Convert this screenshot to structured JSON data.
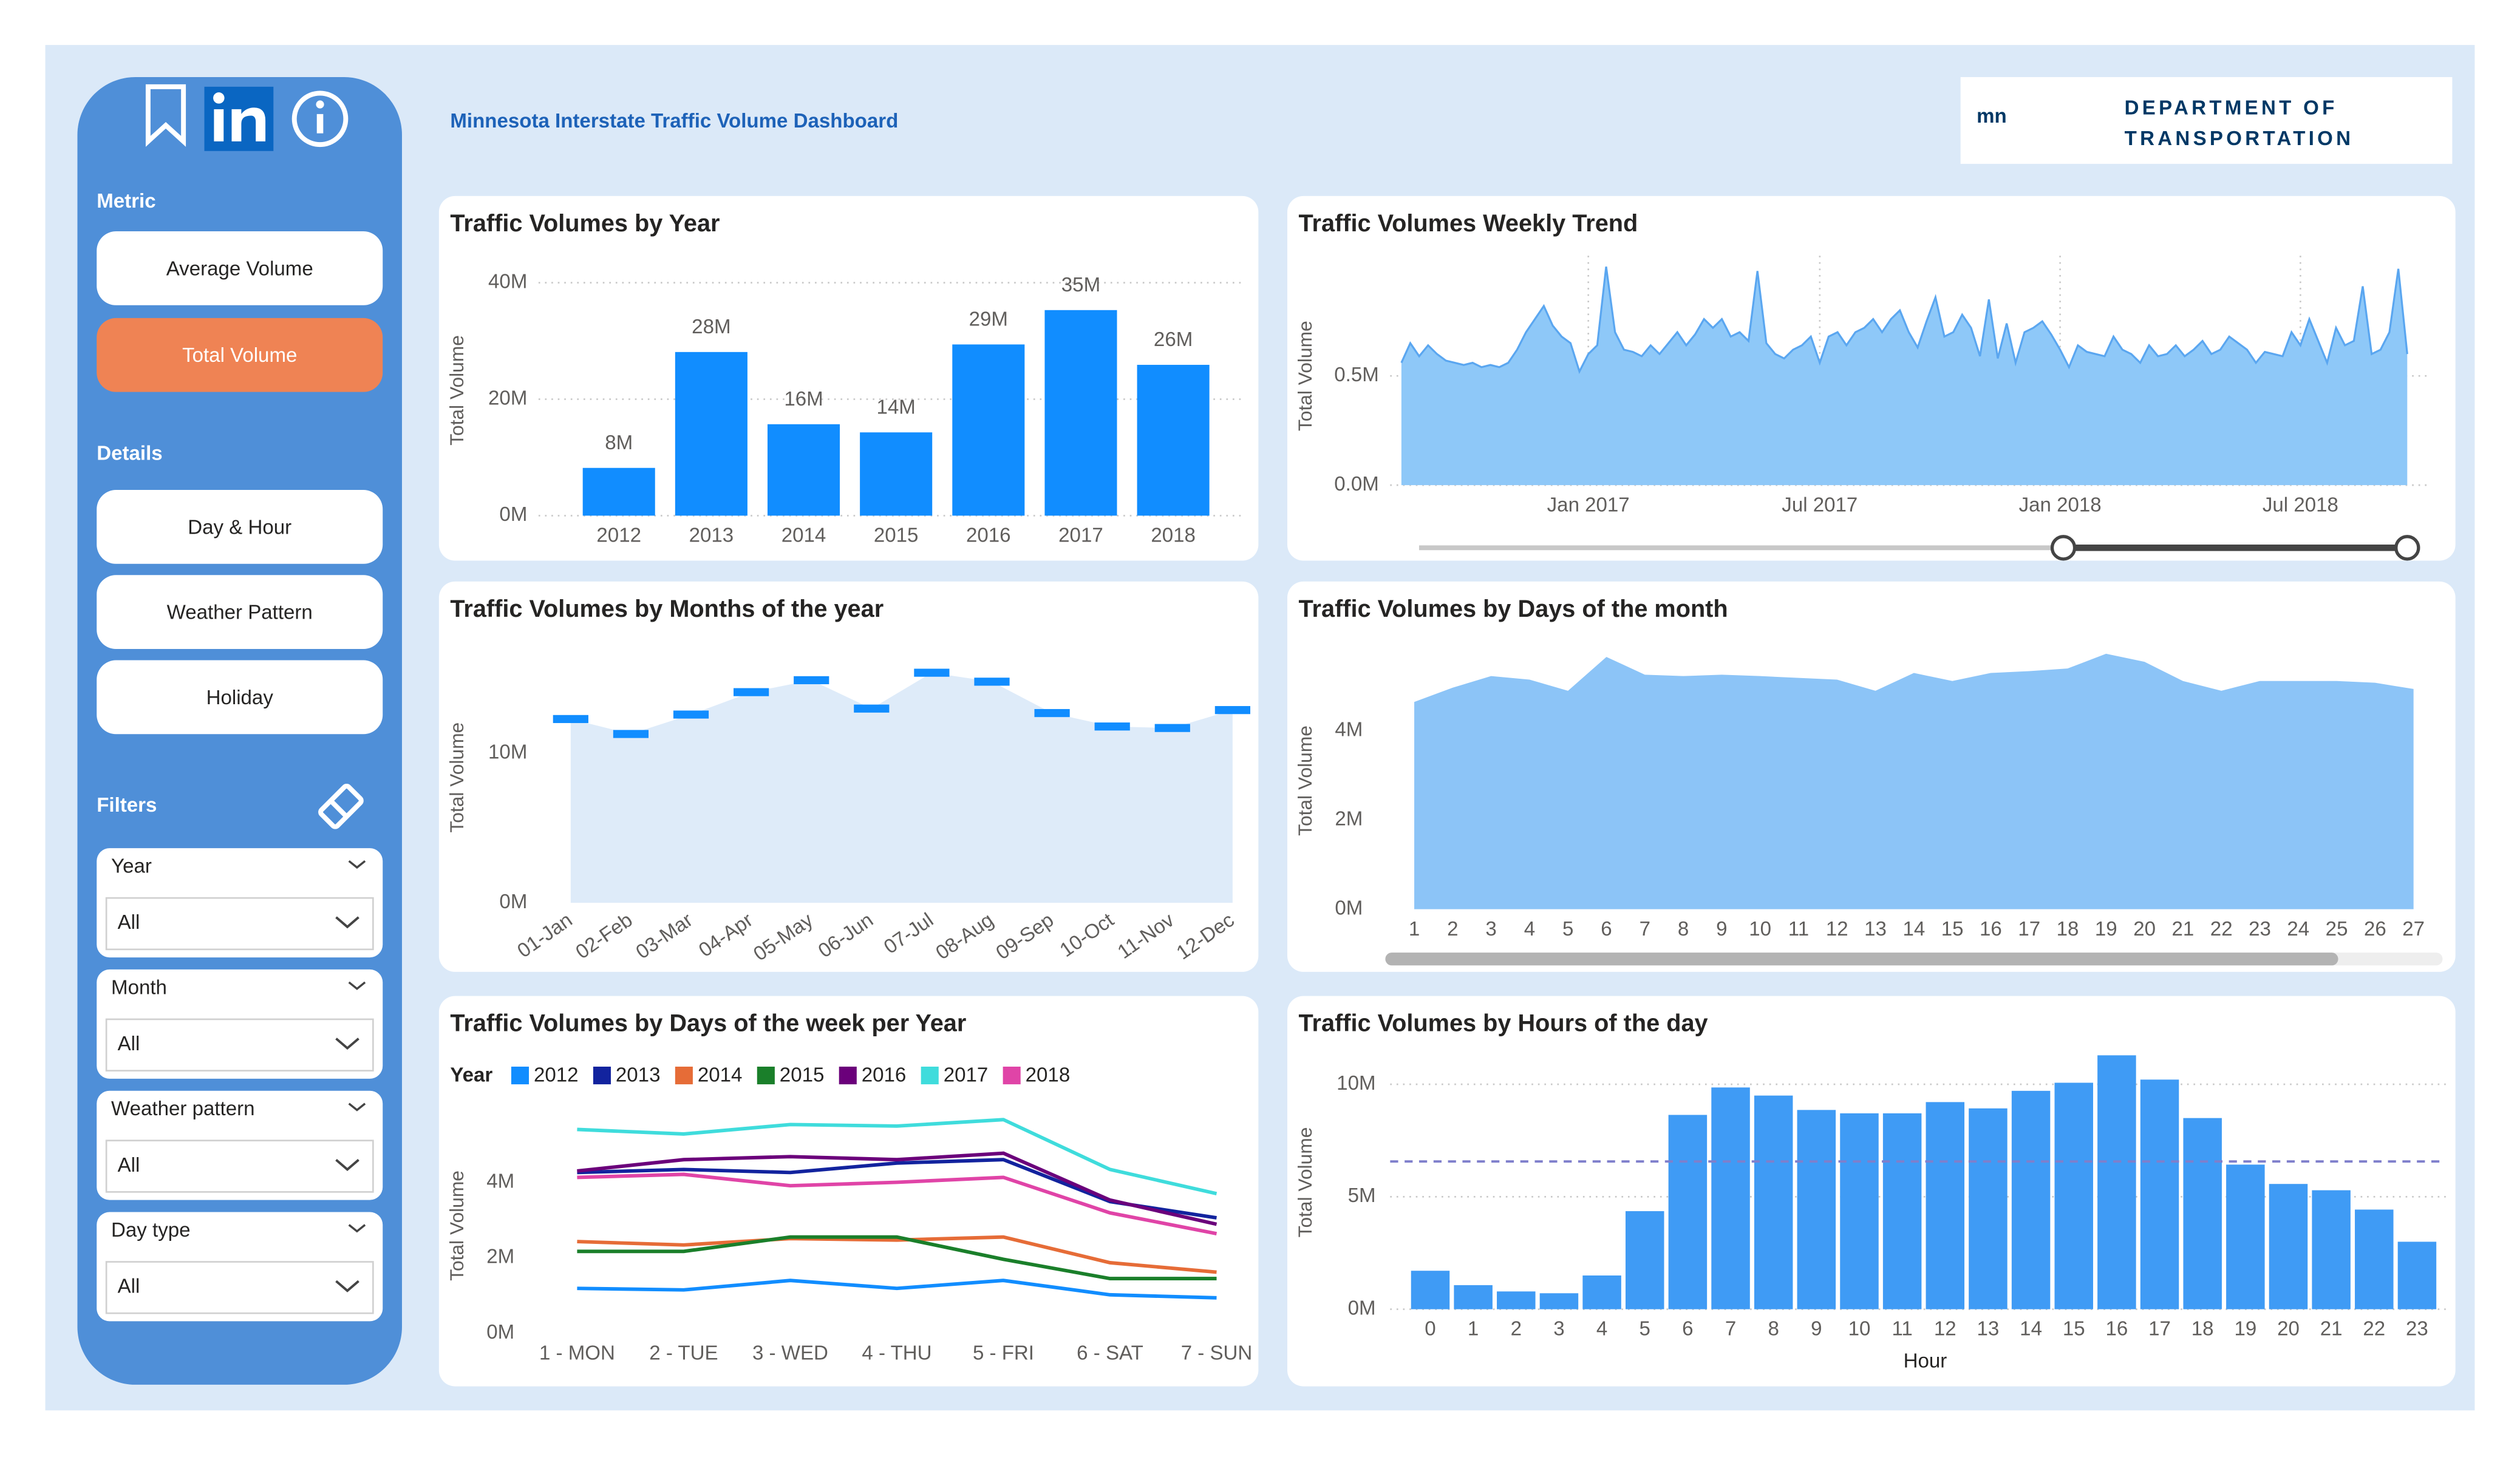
{
  "header": {
    "title": "Minnesota Interstate Traffic Volume Dashboard",
    "logo": {
      "mark": "mn",
      "line1": "DEPARTMENT OF",
      "line2": "TRANSPORTATION"
    }
  },
  "sidebar": {
    "metric": {
      "title": "Metric",
      "options": [
        "Average Volume",
        "Total Volume"
      ],
      "selected": 1
    },
    "details": {
      "title": "Details",
      "buttons": [
        "Day & Hour",
        "Weather Pattern",
        "Holiday"
      ]
    },
    "filters": {
      "title": "Filters",
      "items": [
        {
          "label": "Year",
          "value": "All"
        },
        {
          "label": "Month",
          "value": "All"
        },
        {
          "label": "Weather pattern",
          "value": "All"
        },
        {
          "label": "Day type",
          "value": "All"
        }
      ]
    }
  },
  "chart_data": [
    {
      "type": "bar",
      "title": "Traffic Volumes by Year",
      "y_label": "Total Volume",
      "categories": [
        "2012",
        "2013",
        "2014",
        "2015",
        "2016",
        "2017",
        "2018"
      ],
      "values": [
        8200000,
        28100000,
        15700000,
        14300000,
        29400000,
        35300000,
        25900000
      ],
      "value_labels": [
        "8M",
        "28M",
        "16M",
        "14M",
        "29M",
        "35M",
        "26M"
      ],
      "color": "#118dff",
      "ylim": [
        0,
        40000000
      ],
      "yticks": [
        {
          "value": 0,
          "label": "0M"
        },
        {
          "value": 20000000,
          "label": "20M"
        },
        {
          "value": 40000000,
          "label": "40M"
        }
      ],
      "grid": true
    },
    {
      "type": "area",
      "title": "Traffic Volumes Weekly Trend",
      "y_label": "Total Volume",
      "values": [
        560000,
        650000,
        590000,
        640000,
        600000,
        570000,
        560000,
        550000,
        560000,
        540000,
        550000,
        540000,
        560000,
        620000,
        700000,
        760000,
        820000,
        730000,
        680000,
        650000,
        520000,
        600000,
        640000,
        1000000,
        700000,
        620000,
        610000,
        590000,
        640000,
        600000,
        650000,
        700000,
        640000,
        690000,
        760000,
        720000,
        760000,
        680000,
        700000,
        660000,
        980000,
        650000,
        600000,
        580000,
        620000,
        640000,
        680000,
        560000,
        680000,
        700000,
        640000,
        700000,
        720000,
        760000,
        700000,
        760000,
        800000,
        700000,
        630000,
        750000,
        860000,
        680000,
        700000,
        780000,
        720000,
        590000,
        850000,
        580000,
        740000,
        560000,
        700000,
        720000,
        750000,
        690000,
        620000,
        540000,
        640000,
        610000,
        600000,
        590000,
        680000,
        620000,
        600000,
        560000,
        640000,
        590000,
        600000,
        640000,
        590000,
        620000,
        660000,
        600000,
        620000,
        680000,
        650000,
        620000,
        560000,
        610000,
        600000,
        590000,
        700000,
        640000,
        760000,
        660000,
        560000,
        720000,
        640000,
        660000,
        910000,
        600000,
        620000,
        700000,
        990000,
        600000
      ],
      "color": "#8ec8f8",
      "line_color": "#5aa6f0",
      "xlim": [
        0,
        113
      ],
      "xticks": [
        {
          "value": 21,
          "label": "Jan 2017"
        },
        {
          "value": 47,
          "label": "Jul 2017"
        },
        {
          "value": 74,
          "label": "Jan 2018"
        },
        {
          "value": 101,
          "label": "Jul 2018"
        }
      ],
      "ylim": [
        0,
        1050000
      ],
      "yticks": [
        {
          "value": 0,
          "label": "0.0M"
        },
        {
          "value": 500000,
          "label": "0.5M"
        }
      ],
      "grid": true
    },
    {
      "type": "area",
      "title": "Traffic Volumes by Months of the year",
      "y_label": "Total Volume",
      "categories": [
        "01-Jan",
        "02-Feb",
        "03-Mar",
        "04-Apr",
        "05-May",
        "06-Jun",
        "07-Jul",
        "08-Aug",
        "09-Sep",
        "10-Oct",
        "11-Nov",
        "12-Dec"
      ],
      "values": [
        12300000,
        11300000,
        12600000,
        14100000,
        14900000,
        13000000,
        15400000,
        14800000,
        12700000,
        11800000,
        11700000,
        12900000
      ],
      "color": "#deebf9",
      "marker": "dash",
      "marker_color": "#118dff",
      "ylim": [
        0,
        16000000
      ],
      "yticks": [
        {
          "value": 0,
          "label": "0M"
        },
        {
          "value": 10000000,
          "label": "10M"
        }
      ],
      "grid": false
    },
    {
      "type": "area",
      "title": "Traffic Volumes by Days of the month",
      "y_label": "Total Volume",
      "categories": [
        "1",
        "2",
        "3",
        "4",
        "5",
        "6",
        "7",
        "8",
        "9",
        "10",
        "11",
        "12",
        "13",
        "14",
        "15",
        "16",
        "17",
        "18",
        "19",
        "20",
        "21",
        "22",
        "23",
        "24",
        "25",
        "26",
        "27"
      ],
      "values": [
        4650000,
        4970000,
        5230000,
        5150000,
        4900000,
        5660000,
        5260000,
        5230000,
        5260000,
        5230000,
        5190000,
        5150000,
        4900000,
        5300000,
        5120000,
        5300000,
        5340000,
        5400000,
        5730000,
        5550000,
        5120000,
        4900000,
        5120000,
        5120000,
        5120000,
        5080000,
        4940000
      ],
      "color": "#8cc4f7",
      "ylim": [
        0,
        6000000
      ],
      "yticks": [
        {
          "value": 0,
          "label": "0M"
        },
        {
          "value": 2000000,
          "label": "2M"
        },
        {
          "value": 4000000,
          "label": "4M"
        }
      ],
      "grid": false
    },
    {
      "type": "line",
      "title": "Traffic Volumes by Days of the week per Year",
      "y_label": "Total Volume",
      "legend_title": "Year",
      "categories": [
        "1 - MON",
        "2 - TUE",
        "3 - WED",
        "4 - THU",
        "5 - FRI",
        "6 - SAT",
        "7 - SUN"
      ],
      "series": [
        {
          "name": "2012",
          "color": "#118dff",
          "values": [
            1190000,
            1150000,
            1400000,
            1190000,
            1400000,
            1020000,
            940000
          ]
        },
        {
          "name": "2013",
          "color": "#12239e",
          "values": [
            4260000,
            4340000,
            4260000,
            4510000,
            4600000,
            3490000,
            3060000
          ]
        },
        {
          "name": "2014",
          "color": "#e66c37",
          "values": [
            2430000,
            2340000,
            2510000,
            2470000,
            2550000,
            1870000,
            1620000
          ]
        },
        {
          "name": "2015",
          "color": "#1a7f2a",
          "values": [
            2170000,
            2170000,
            2550000,
            2550000,
            1960000,
            1450000,
            1450000
          ]
        },
        {
          "name": "2016",
          "color": "#6b007b",
          "values": [
            4300000,
            4600000,
            4680000,
            4600000,
            4770000,
            3530000,
            2890000
          ]
        },
        {
          "name": "2017",
          "color": "#3fdcdc",
          "values": [
            5400000,
            5280000,
            5530000,
            5490000,
            5660000,
            4340000,
            3700000
          ]
        },
        {
          "name": "2018",
          "color": "#e044a7",
          "values": [
            4130000,
            4210000,
            3910000,
            4000000,
            4130000,
            3190000,
            2640000
          ]
        }
      ],
      "ylim": [
        0,
        6000000
      ],
      "yticks": [
        {
          "value": 0,
          "label": "0M"
        },
        {
          "value": 2000000,
          "label": "2M"
        },
        {
          "value": 4000000,
          "label": "4M"
        }
      ],
      "grid": false
    },
    {
      "type": "bar",
      "title": "Traffic Volumes by Hours of the day",
      "y_label": "Total Volume",
      "x_label": "Hour",
      "categories": [
        "0",
        "1",
        "2",
        "3",
        "4",
        "5",
        "6",
        "7",
        "8",
        "9",
        "10",
        "11",
        "12",
        "13",
        "14",
        "15",
        "16",
        "17",
        "18",
        "19",
        "20",
        "21",
        "22",
        "23"
      ],
      "values": [
        1710000,
        1070000,
        790000,
        710000,
        1500000,
        4360000,
        8640000,
        9860000,
        9500000,
        8860000,
        8710000,
        8710000,
        9210000,
        8930000,
        9710000,
        10070000,
        11290000,
        10210000,
        8500000,
        6430000,
        5570000,
        5290000,
        4430000,
        3000000
      ],
      "color": "#3f9bf5",
      "reference_line": 6570000,
      "reference_color": "#7f7fcc",
      "ylim": [
        0,
        11500000
      ],
      "yticks": [
        {
          "value": 0,
          "label": "0M"
        },
        {
          "value": 5000000,
          "label": "5M"
        },
        {
          "value": 10000000,
          "label": "10M"
        }
      ],
      "grid": true
    }
  ]
}
